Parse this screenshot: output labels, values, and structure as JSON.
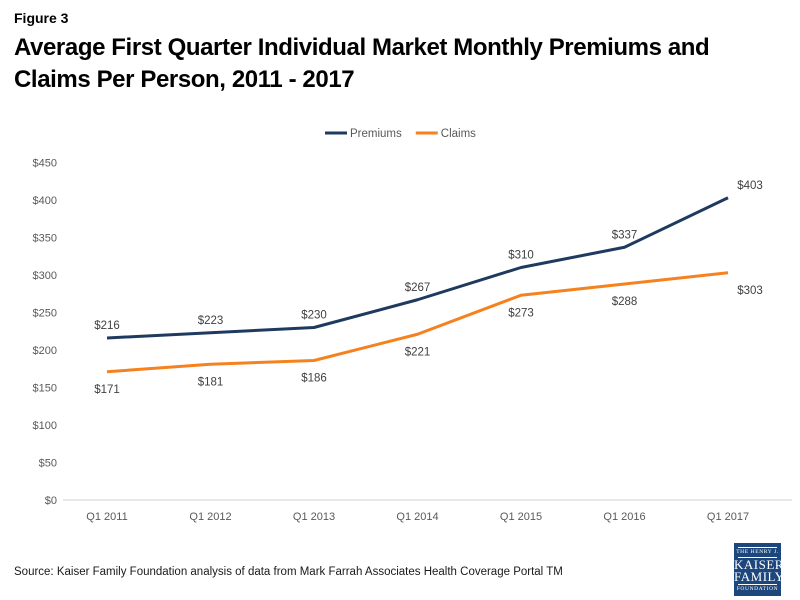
{
  "header": {
    "figure_label": "Figure 3",
    "title": "Average First Quarter Individual Market Monthly Premiums and Claims Per Person, 2011 - 2017"
  },
  "chart_data": {
    "type": "line",
    "categories": [
      "Q1 2011",
      "Q1 2012",
      "Q1 2013",
      "Q1 2014",
      "Q1 2015",
      "Q1 2016",
      "Q1 2017"
    ],
    "series": [
      {
        "name": "Premiums",
        "color": "#1F3A5F",
        "values": [
          216,
          223,
          230,
          267,
          310,
          337,
          403
        ],
        "label_position": "above"
      },
      {
        "name": "Claims",
        "color": "#F5821E",
        "values": [
          171,
          181,
          186,
          221,
          273,
          288,
          303
        ],
        "label_position": "below"
      }
    ],
    "value_prefix": "$",
    "ylim": [
      0,
      450
    ],
    "y_step": 50,
    "grid": false,
    "legend_position": "top-center",
    "axis_line_color": "#D9D9D9"
  },
  "footer": {
    "source": "Source: Kaiser Family Foundation analysis of data from Mark Farrah Associates Health Coverage Portal TM",
    "logo": {
      "bg_color": "#1C467C",
      "lines": [
        "THE HENRY J.",
        "KAISER",
        "FAMILY",
        "FOUNDATION"
      ]
    }
  }
}
